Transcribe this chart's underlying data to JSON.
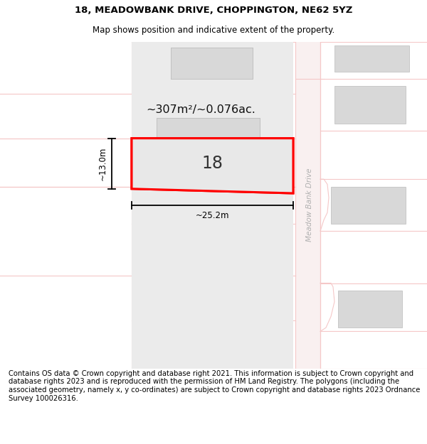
{
  "title_line1": "18, MEADOWBANK DRIVE, CHOPPINGTON, NE62 5YZ",
  "title_line2": "Map shows position and indicative extent of the property.",
  "area_label": "~307m²/~0.076ac.",
  "width_label": "~25.2m",
  "height_label": "~13.0m",
  "house_number": "18",
  "road_label": "Meadow Bank Drive",
  "footer_text": "Contains OS data © Crown copyright and database right 2021. This information is subject to Crown copyright and database rights 2023 and is reproduced with the permission of HM Land Registry. The polygons (including the associated geometry, namely x, y co-ordinates) are subject to Crown copyright and database rights 2023 Ordnance Survey 100026316.",
  "bg_color": "#ffffff",
  "map_bg": "#f7f7f7",
  "plot_border": "#ff0000",
  "road_color": "#f5c8c8",
  "road_bg": "#ffffff",
  "building_fill": "#d8d8d8",
  "plot_fill": "#e8e8e8",
  "title_fontsize": 9.5,
  "subtitle_fontsize": 8.5,
  "footer_fontsize": 7.2,
  "dim_line_color": "#000000",
  "text_dark": "#333333",
  "road_label_color": "#b0b0b0"
}
